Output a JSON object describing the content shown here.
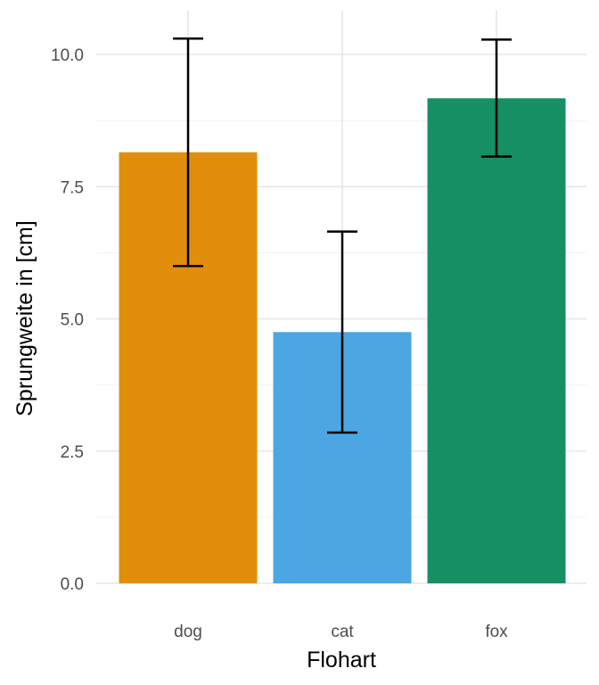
{
  "chart_data": {
    "type": "bar",
    "categories": [
      "dog",
      "cat",
      "fox"
    ],
    "values": [
      8.15,
      4.75,
      9.17
    ],
    "error_low": [
      6.0,
      2.85,
      8.07
    ],
    "error_high": [
      10.3,
      6.65,
      10.28
    ],
    "colors": [
      "#E08E0B",
      "#4BA6E2",
      "#168F62"
    ],
    "xlabel": "Flohart",
    "ylabel": "Sprungweite in [cm]",
    "ylim": [
      0,
      10.8
    ],
    "y_ticks": [
      0,
      2.5,
      5,
      7.5,
      10
    ],
    "y_tick_labels": [
      "0.0",
      "2.5",
      "5.0",
      "7.5",
      "10.0"
    ],
    "grid": true
  }
}
